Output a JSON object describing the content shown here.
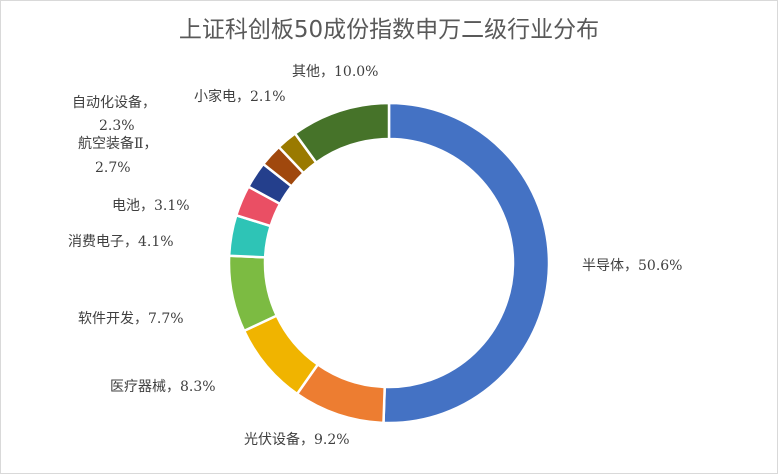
{
  "chart_data": {
    "type": "pie",
    "variant": "donut",
    "title": "上证科创板50成份指数申万二级行业分布",
    "series": [
      {
        "name": "半导体",
        "value": 50.6,
        "label": "半导体，50.6%",
        "color": "#4472c4"
      },
      {
        "name": "光伏设备",
        "value": 9.2,
        "label": "光伏设备，9.2%",
        "color": "#ed7d31"
      },
      {
        "name": "医疗器械",
        "value": 8.3,
        "label": "医疗器械，8.3%",
        "color": "#f0b400"
      },
      {
        "name": "软件开发",
        "value": 7.7,
        "label": "软件开发，7.7%",
        "color": "#7cbb42"
      },
      {
        "name": "消费电子",
        "value": 4.1,
        "label": "消费电子，4.1%",
        "color": "#2ec4b6"
      },
      {
        "name": "电池",
        "value": 3.1,
        "label": "电池，3.1%",
        "color": "#ea4f64"
      },
      {
        "name": "航空装备Ⅱ",
        "value": 2.7,
        "label": [
          "航空装备Ⅱ，",
          "2.7%"
        ],
        "color": "#243f8c"
      },
      {
        "name": "自动化设备",
        "value": 2.3,
        "label": [
          "自动化设备，",
          "2.3%"
        ],
        "color": "#a0480d"
      },
      {
        "name": "小家电",
        "value": 2.1,
        "label": "小家电，2.1%",
        "color": "#9a7a00"
      },
      {
        "name": "其他",
        "value": 10.0,
        "label": "其他，10.0%",
        "color": "#467329"
      }
    ],
    "legend": "none"
  }
}
